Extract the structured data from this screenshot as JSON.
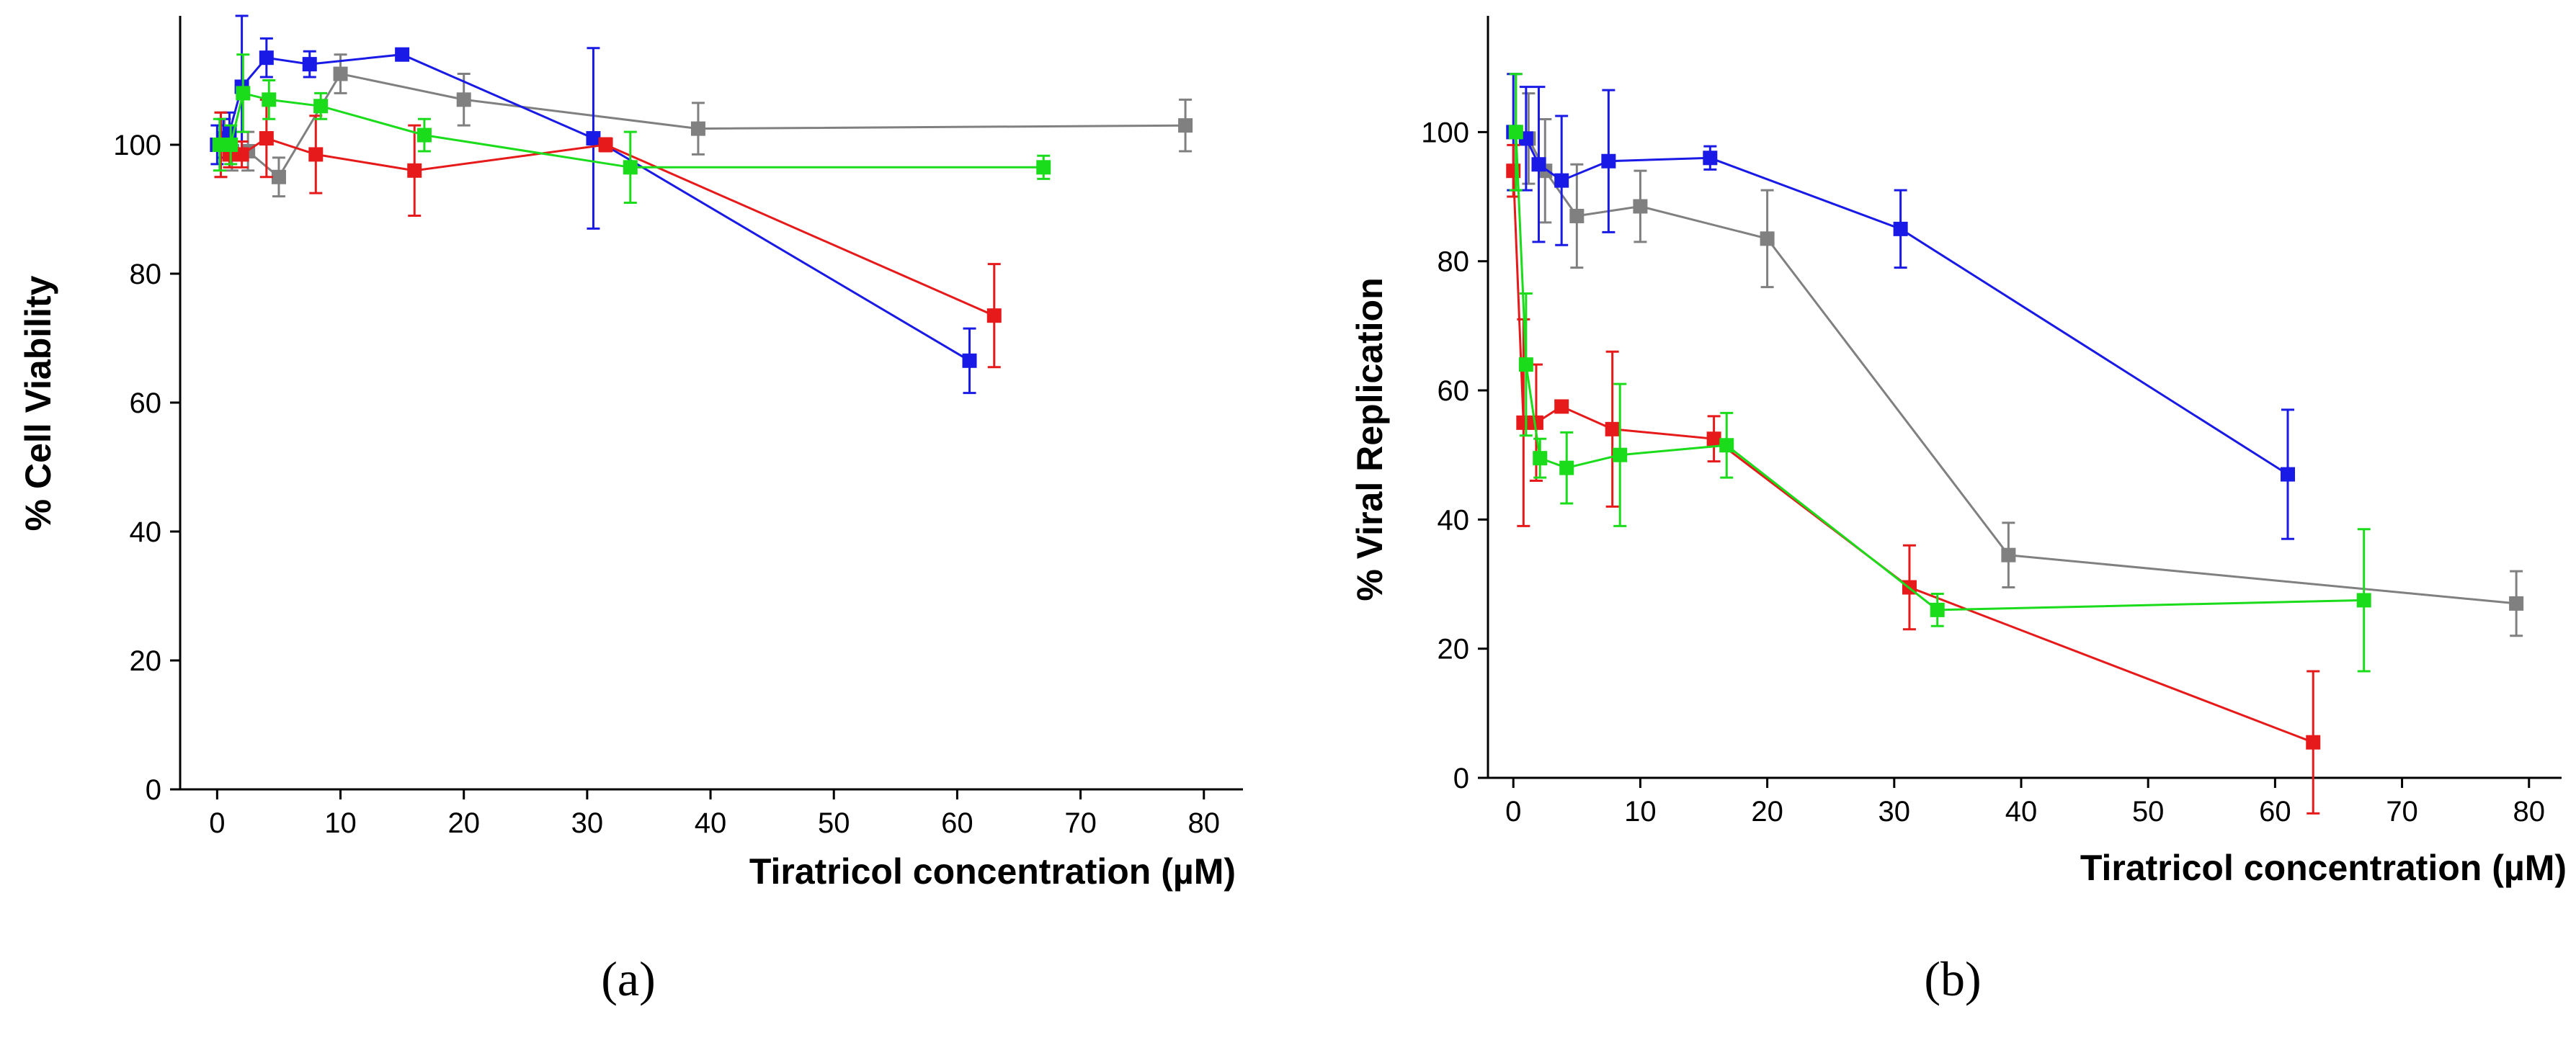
{
  "chart_data": [
    {
      "type": "line",
      "panel_label": "(a)",
      "title": "",
      "xlabel": "Tiratricol concentration (µM)",
      "ylabel": "% Cell Viability",
      "xlim": [
        -3,
        82
      ],
      "ylim": [
        0,
        120
      ],
      "xticks": [
        0,
        10,
        20,
        30,
        40,
        50,
        60,
        70,
        80
      ],
      "yticks": [
        0,
        20,
        40,
        60,
        80,
        100
      ],
      "legend": "none",
      "grid": false,
      "series": [
        {
          "name": "gray",
          "color": "#808080",
          "points": [
            {
              "x": 0.3,
              "y": 100,
              "err": 5
            },
            {
              "x": 0.6,
              "y": 101,
              "err": 3
            },
            {
              "x": 1.2,
              "y": 99,
              "err": 3
            },
            {
              "x": 2.5,
              "y": 99,
              "err": 3
            },
            {
              "x": 5,
              "y": 95,
              "err": 3
            },
            {
              "x": 10,
              "y": 111,
              "err": 3
            },
            {
              "x": 20,
              "y": 107,
              "err": 4
            },
            {
              "x": 39,
              "y": 102.5,
              "err": 4
            },
            {
              "x": 78.5,
              "y": 103,
              "err": 4
            }
          ]
        },
        {
          "name": "blue",
          "color": "#1a1ae6",
          "points": [
            {
              "x": 0,
              "y": 100,
              "err": 3
            },
            {
              "x": 0.5,
              "y": 101,
              "err": 3
            },
            {
              "x": 1,
              "y": 102,
              "err": 3
            },
            {
              "x": 2,
              "y": 109,
              "err": 11
            },
            {
              "x": 4,
              "y": 113.5,
              "err": 3
            },
            {
              "x": 7.5,
              "y": 112.5,
              "err": 2
            },
            {
              "x": 15,
              "y": 114,
              "err": 0.8
            },
            {
              "x": 30.5,
              "y": 101,
              "err": 14
            },
            {
              "x": 61,
              "y": 66.5,
              "err": 5
            }
          ]
        },
        {
          "name": "red",
          "color": "#e61a1a",
          "points": [
            {
              "x": 0.3,
              "y": 100,
              "err": 5
            },
            {
              "x": 1,
              "y": 98.5,
              "err": 2
            },
            {
              "x": 2,
              "y": 98.5,
              "err": 2
            },
            {
              "x": 4,
              "y": 101,
              "err": 6
            },
            {
              "x": 8,
              "y": 98.5,
              "err": 6
            },
            {
              "x": 16,
              "y": 96,
              "err": 7
            },
            {
              "x": 31.5,
              "y": 100,
              "err": 1
            },
            {
              "x": 63,
              "y": 73.5,
              "err": 8
            }
          ]
        },
        {
          "name": "green",
          "color": "#1adc1a",
          "points": [
            {
              "x": 0.2,
              "y": 100,
              "err": 4
            },
            {
              "x": 1.1,
              "y": 100,
              "err": 3
            },
            {
              "x": 2.1,
              "y": 108,
              "err": 6
            },
            {
              "x": 4.2,
              "y": 107,
              "err": 3
            },
            {
              "x": 8.4,
              "y": 106,
              "err": 2
            },
            {
              "x": 16.8,
              "y": 101.5,
              "err": 2.5
            },
            {
              "x": 33.5,
              "y": 96.5,
              "err": 5.5
            },
            {
              "x": 67,
              "y": 96.5,
              "err": 1.8
            }
          ]
        }
      ]
    },
    {
      "type": "line",
      "panel_label": "(b)",
      "title": "",
      "xlabel": "Tiratricol concentration (µM)",
      "ylabel": "% Viral Replication",
      "xlim": [
        -2,
        82
      ],
      "ylim": [
        0,
        118
      ],
      "xticks": [
        0,
        10,
        20,
        30,
        40,
        50,
        60,
        70,
        80
      ],
      "yticks": [
        0,
        20,
        40,
        60,
        80,
        100
      ],
      "legend": "none",
      "grid": false,
      "series": [
        {
          "name": "gray",
          "color": "#808080",
          "points": [
            {
              "x": 0.2,
              "y": 100,
              "err": 9
            },
            {
              "x": 1.2,
              "y": 99,
              "err": 7
            },
            {
              "x": 2.5,
              "y": 94,
              "err": 8
            },
            {
              "x": 5,
              "y": 87,
              "err": 8
            },
            {
              "x": 10,
              "y": 88.5,
              "err": 5.5
            },
            {
              "x": 20,
              "y": 83.5,
              "err": 7.5
            },
            {
              "x": 39,
              "y": 34.5,
              "err": 5
            },
            {
              "x": 79,
              "y": 27,
              "err": 5
            }
          ]
        },
        {
          "name": "blue",
          "color": "#1a1ae6",
          "points": [
            {
              "x": 0,
              "y": 100,
              "err": 9
            },
            {
              "x": 1,
              "y": 99,
              "err": 8
            },
            {
              "x": 2,
              "y": 95,
              "err": 12
            },
            {
              "x": 3.8,
              "y": 92.5,
              "err": 10
            },
            {
              "x": 7.5,
              "y": 95.5,
              "err": 11
            },
            {
              "x": 15.5,
              "y": 96,
              "err": 1.8
            },
            {
              "x": 30.5,
              "y": 85,
              "err": 6
            },
            {
              "x": 61,
              "y": 47,
              "err": 10
            }
          ]
        },
        {
          "name": "red",
          "color": "#e61a1a",
          "points": [
            {
              "x": 0,
              "y": 94,
              "err": 4
            },
            {
              "x": 0.8,
              "y": 55,
              "err": 16
            },
            {
              "x": 1.8,
              "y": 55,
              "err": 9
            },
            {
              "x": 3.8,
              "y": 57.5,
              "err": 0.8
            },
            {
              "x": 7.8,
              "y": 54,
              "err": 12
            },
            {
              "x": 15.8,
              "y": 52.5,
              "err": 3.5
            },
            {
              "x": 31.2,
              "y": 29.5,
              "err": 6.5
            },
            {
              "x": 63,
              "y": 5.5,
              "err": 11
            }
          ]
        },
        {
          "name": "green",
          "color": "#1adc1a",
          "points": [
            {
              "x": 0.2,
              "y": 100,
              "err": 9
            },
            {
              "x": 1,
              "y": 64,
              "err": 11
            },
            {
              "x": 2.1,
              "y": 49.5,
              "err": 3
            },
            {
              "x": 4.2,
              "y": 48,
              "err": 5.5
            },
            {
              "x": 8.4,
              "y": 50,
              "err": 11
            },
            {
              "x": 16.8,
              "y": 51.5,
              "err": 5
            },
            {
              "x": 33.4,
              "y": 26,
              "err": 2.5
            },
            {
              "x": 67,
              "y": 27.5,
              "err": 11
            }
          ]
        }
      ]
    }
  ]
}
